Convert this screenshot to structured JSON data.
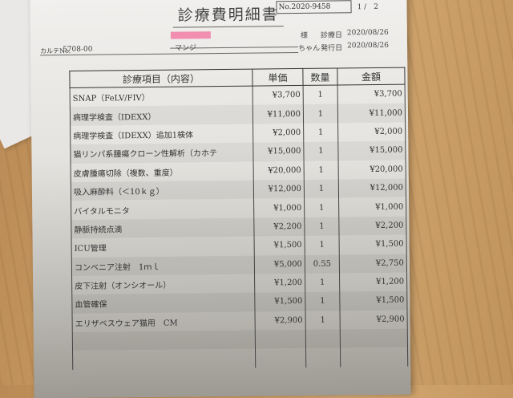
{
  "header": {
    "title": "診療費明細書",
    "doc_no": "No.2020-9458",
    "page": "1 /　2",
    "honorific": "様",
    "treatment_date_label": "診療日",
    "treatment_date": "2020/08/26",
    "chart_no_label": "カルテNo.",
    "chart_no": "5708-00",
    "pet_name": "マンジ",
    "pet_suffix": "ちゃん",
    "issue_date_label": "発行日",
    "issue_date": "2020/08/26",
    "redaction_color": "#f28fb0"
  },
  "table": {
    "columns": [
      "診療項目（内容）",
      "単価",
      "数量",
      "金額"
    ],
    "rows": [
      [
        "SNAP（FeLV/FIV）",
        "¥3,700",
        "1",
        "¥3,700"
      ],
      [
        "病理学検査（IDEXX）",
        "¥11,000",
        "1",
        "¥11,000"
      ],
      [
        "病理学検査（IDEXX）追加1検体",
        "¥2,000",
        "1",
        "¥2,000"
      ],
      [
        "猫リンパ系腫瘍クローン性解析（カホテ",
        "¥15,000",
        "1",
        "¥15,000"
      ],
      [
        "皮膚腫瘍切除（複数、重度）",
        "¥20,000",
        "1",
        "¥20,000"
      ],
      [
        "吸入麻酔料（＜10ｋｇ）",
        "¥12,000",
        "1",
        "¥12,000"
      ],
      [
        "バイタルモニタ",
        "¥1,000",
        "1",
        "¥1,000"
      ],
      [
        "静脈持続点滴",
        "¥2,200",
        "1",
        "¥2,200"
      ],
      [
        "ICU管理",
        "¥1,500",
        "1",
        "¥1,500"
      ],
      [
        "コンベニア注射　1ｍｌ",
        "¥5,000",
        "0.55",
        "¥2,750"
      ],
      [
        "皮下注射（オンシオール）",
        "¥1,200",
        "1",
        "¥1,200"
      ],
      [
        "血管確保",
        "¥1,500",
        "1",
        "¥1,500"
      ],
      [
        "エリザベスウェア猫用　CM",
        "¥2,900",
        "1",
        "¥2,900"
      ],
      [
        "",
        "",
        "",
        ""
      ],
      [
        "",
        "",
        "",
        ""
      ]
    ]
  }
}
